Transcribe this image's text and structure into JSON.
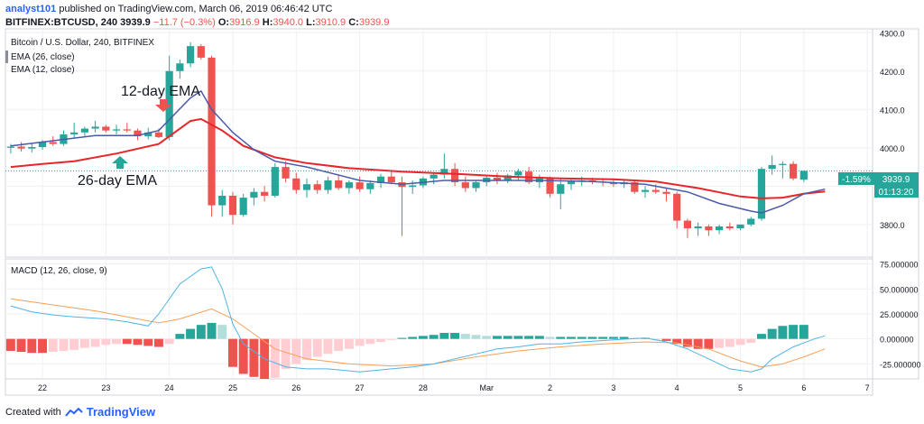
{
  "header": {
    "user": "analyst101",
    "published_text": "published on TradingView.com, March 06, 2019 06:46:42 UTC",
    "symbol": "BITFINEX:BTCUSD, 240",
    "last": "3939.9",
    "change": "−11.7 (−0.3%)",
    "o_label": "O:",
    "o": "3916.9",
    "h_label": "H:",
    "h": "3940.0",
    "l_label": "L:",
    "l": "3910.9",
    "c_label": "C:",
    "c": "3939.9"
  },
  "legend": {
    "title": "Bitcoin / U.S. Dollar, 240, BITFINEX",
    "ema26": "EMA (26, close)",
    "ema12": "EMA (12, close)",
    "macd": "MACD (12, 26, close, 9)"
  },
  "annotations": {
    "ema12_label": "12-day EMA",
    "ema26_label": "26-day EMA"
  },
  "price_tags": {
    "change_pct": "-1.59%",
    "price": "3939.9",
    "countdown": "01:13:20"
  },
  "footer": {
    "created_with": "Created with",
    "brand": "TradingView"
  },
  "colors": {
    "up": "#26a69a",
    "down": "#ef5350",
    "ema12": "#4a5aa8",
    "ema26": "#e8262a",
    "macd_line": "#4fb3e8",
    "signal_line": "#f5a05a",
    "hist_up_strong": "#26a69a",
    "hist_up_weak": "#b2dfdb",
    "hist_down_strong": "#ef5350",
    "hist_down_weak": "#ffcdd2"
  },
  "chart_data": [
    {
      "type": "candlestick",
      "title": "Bitcoin / U.S. Dollar, 240, BITFINEX",
      "x_ticks": [
        {
          "label": "22",
          "i": 3
        },
        {
          "label": "23",
          "i": 9
        },
        {
          "label": "24",
          "i": 15
        },
        {
          "label": "25",
          "i": 21
        },
        {
          "label": "26",
          "i": 27
        },
        {
          "label": "27",
          "i": 33
        },
        {
          "label": "28",
          "i": 39
        },
        {
          "label": "Mar",
          "i": 45
        },
        {
          "label": "2",
          "i": 51
        },
        {
          "label": "3",
          "i": 57
        },
        {
          "label": "4",
          "i": 63
        },
        {
          "label": "5",
          "i": 69
        },
        {
          "label": "6",
          "i": 75
        },
        {
          "label": "7",
          "i": 81
        }
      ],
      "y_ticks": [
        3800,
        3900,
        4000,
        4100,
        4200,
        4300
      ],
      "ylim": [
        3715,
        4310
      ],
      "grid": true,
      "ohlc": [
        [
          4000,
          4010,
          3985,
          4003
        ],
        [
          4003,
          4015,
          3990,
          3998
        ],
        [
          3998,
          4012,
          3988,
          4002
        ],
        [
          4002,
          4020,
          3995,
          4015
        ],
        [
          4015,
          4030,
          4005,
          4010
        ],
        [
          4010,
          4045,
          4005,
          4035
        ],
        [
          4035,
          4065,
          4025,
          4040
        ],
        [
          4040,
          4055,
          4030,
          4050
        ],
        [
          4050,
          4070,
          4040,
          4055
        ],
        [
          4055,
          4060,
          4040,
          4045
        ],
        [
          4045,
          4060,
          4035,
          4048
        ],
        [
          4048,
          4065,
          4040,
          4045
        ],
        [
          4045,
          4050,
          4020,
          4030
        ],
        [
          4030,
          4052,
          4022,
          4040
        ],
        [
          4040,
          4050,
          4025,
          4028
        ],
        [
          4028,
          4240,
          4020,
          4200
        ],
        [
          4200,
          4230,
          4180,
          4220
        ],
        [
          4220,
          4275,
          4210,
          4265
        ],
        [
          4265,
          4270,
          4230,
          4235
        ],
        [
          4235,
          4240,
          3820,
          3850
        ],
        [
          3850,
          3890,
          3820,
          3875
        ],
        [
          3875,
          3885,
          3800,
          3825
        ],
        [
          3825,
          3880,
          3820,
          3870
        ],
        [
          3870,
          3895,
          3850,
          3885
        ],
        [
          3885,
          3900,
          3860,
          3875
        ],
        [
          3875,
          3960,
          3870,
          3950
        ],
        [
          3950,
          3965,
          3910,
          3920
        ],
        [
          3920,
          3935,
          3880,
          3890
        ],
        [
          3890,
          3920,
          3870,
          3905
        ],
        [
          3905,
          3915,
          3880,
          3890
        ],
        [
          3890,
          3925,
          3880,
          3915
        ],
        [
          3915,
          3930,
          3890,
          3895
        ],
        [
          3895,
          3915,
          3880,
          3910
        ],
        [
          3910,
          3925,
          3885,
          3892
        ],
        [
          3892,
          3915,
          3880,
          3908
        ],
        [
          3908,
          3932,
          3895,
          3925
        ],
        [
          3925,
          3940,
          3905,
          3910
        ],
        [
          3910,
          3925,
          3770,
          3898
        ],
        [
          3898,
          3915,
          3880,
          3902
        ],
        [
          3902,
          3925,
          3895,
          3920
        ],
        [
          3920,
          3935,
          3905,
          3930
        ],
        [
          3930,
          3985,
          3920,
          3945
        ],
        [
          3945,
          3960,
          3900,
          3910
        ],
        [
          3910,
          3925,
          3885,
          3895
        ],
        [
          3895,
          3915,
          3885,
          3910
        ],
        [
          3910,
          3930,
          3900,
          3922
        ],
        [
          3922,
          3935,
          3905,
          3915
        ],
        [
          3915,
          3932,
          3908,
          3928
        ],
        [
          3928,
          3945,
          3915,
          3938
        ],
        [
          3938,
          3950,
          3905,
          3910
        ],
        [
          3910,
          3930,
          3895,
          3920
        ],
        [
          3920,
          3925,
          3870,
          3880
        ],
        [
          3880,
          3920,
          3840,
          3905
        ],
        [
          3905,
          3920,
          3890,
          3912
        ],
        [
          3912,
          3925,
          3900,
          3915
        ],
        [
          3915,
          3922,
          3905,
          3912
        ],
        [
          3912,
          3920,
          3900,
          3910
        ],
        [
          3910,
          3918,
          3898,
          3905
        ],
        [
          3905,
          3915,
          3895,
          3910
        ],
        [
          3910,
          3915,
          3880,
          3885
        ],
        [
          3885,
          3900,
          3870,
          3890
        ],
        [
          3890,
          3905,
          3880,
          3885
        ],
        [
          3885,
          3895,
          3860,
          3880
        ],
        [
          3880,
          3885,
          3790,
          3810
        ],
        [
          3810,
          3815,
          3765,
          3790
        ],
        [
          3790,
          3805,
          3770,
          3795
        ],
        [
          3795,
          3800,
          3770,
          3785
        ],
        [
          3785,
          3800,
          3775,
          3795
        ],
        [
          3795,
          3805,
          3785,
          3790
        ],
        [
          3790,
          3800,
          3785,
          3800
        ],
        [
          3800,
          3820,
          3795,
          3815
        ],
        [
          3815,
          3950,
          3810,
          3945
        ],
        [
          3945,
          3980,
          3930,
          3955
        ],
        [
          3955,
          3965,
          3920,
          3958
        ],
        [
          3958,
          3965,
          3915,
          3920
        ],
        [
          3916.9,
          3940,
          3910.9,
          3939.9
        ]
      ],
      "series": [
        {
          "name": "EMA (12, close)",
          "points": [
            [
              0,
              4005
            ],
            [
              8,
              4032
            ],
            [
              12,
              4032
            ],
            [
              14,
              4045
            ],
            [
              17,
              4130
            ],
            [
              18,
              4148
            ],
            [
              19,
              4100
            ],
            [
              21,
              4040
            ],
            [
              23,
              3995
            ],
            [
              25,
              3965
            ],
            [
              28,
              3950
            ],
            [
              33,
              3915
            ],
            [
              37,
              3905
            ],
            [
              41,
              3915
            ],
            [
              45,
              3915
            ],
            [
              50,
              3915
            ],
            [
              55,
              3912
            ],
            [
              60,
              3905
            ],
            [
              64,
              3885
            ],
            [
              67,
              3855
            ],
            [
              70,
              3835
            ],
            [
              71,
              3830
            ],
            [
              73,
              3850
            ],
            [
              75,
              3880
            ],
            [
              77,
              3892
            ]
          ]
        },
        {
          "name": "EMA (26, close)",
          "points": [
            [
              0,
              3950
            ],
            [
              3,
              3958
            ],
            [
              6,
              3965
            ],
            [
              10,
              3985
            ],
            [
              14,
              4010
            ],
            [
              16,
              4050
            ],
            [
              17,
              4070
            ],
            [
              18,
              4075
            ],
            [
              20,
              4045
            ],
            [
              22,
              4005
            ],
            [
              25,
              3975
            ],
            [
              28,
              3960
            ],
            [
              32,
              3947
            ],
            [
              37,
              3938
            ],
            [
              42,
              3932
            ],
            [
              47,
              3925
            ],
            [
              52,
              3920
            ],
            [
              57,
              3918
            ],
            [
              61,
              3912
            ],
            [
              65,
              3895
            ],
            [
              69,
              3873
            ],
            [
              71,
              3868
            ],
            [
              73,
              3870
            ],
            [
              75,
              3880
            ],
            [
              77,
              3886
            ]
          ]
        }
      ],
      "last_price": 3939.9
    },
    {
      "type": "macd",
      "title": "MACD (12, 26, close, 9)",
      "y_ticks": [
        -25,
        0,
        25,
        50,
        75
      ],
      "ylim": [
        -40,
        80
      ],
      "grid": true,
      "histogram": [
        -12,
        -13,
        -14,
        -14,
        -13,
        -12,
        -11,
        -9,
        -8,
        -6,
        -5,
        -5,
        -6,
        -7,
        -8,
        -5,
        5,
        10,
        14,
        16,
        14,
        -28,
        -35,
        -38,
        -40,
        -39,
        -30,
        -25,
        -21,
        -18,
        -15,
        -12,
        -10,
        -7,
        -5,
        -3,
        -1,
        1,
        2,
        3,
        4,
        6,
        6,
        5,
        4,
        3,
        3,
        3,
        3,
        3,
        3,
        2,
        2,
        2,
        2,
        2,
        2,
        2,
        2,
        1,
        1,
        0,
        -2,
        -5,
        -8,
        -10,
        -10,
        -9,
        -8,
        -6,
        -4,
        5,
        10,
        13,
        14,
        14
      ],
      "series": [
        {
          "name": "MACD",
          "points": [
            [
              0,
              33
            ],
            [
              2,
              27
            ],
            [
              4,
              24
            ],
            [
              6,
              22
            ],
            [
              9,
              20
            ],
            [
              11,
              17
            ],
            [
              13,
              13
            ],
            [
              14,
              25
            ],
            [
              16,
              55
            ],
            [
              18,
              70
            ],
            [
              19,
              72
            ],
            [
              20,
              50
            ],
            [
              21,
              15
            ],
            [
              22,
              -5
            ],
            [
              24,
              -20
            ],
            [
              26,
              -28
            ],
            [
              28,
              -30
            ],
            [
              30,
              -30
            ],
            [
              33,
              -33
            ],
            [
              36,
              -30
            ],
            [
              38,
              -28
            ],
            [
              40,
              -25
            ],
            [
              42,
              -20
            ],
            [
              44,
              -15
            ],
            [
              46,
              -10
            ],
            [
              48,
              -8
            ],
            [
              50,
              -5
            ],
            [
              52,
              -5
            ],
            [
              54,
              -3
            ],
            [
              57,
              -1
            ],
            [
              60,
              1
            ],
            [
              62,
              -3
            ],
            [
              64,
              -10
            ],
            [
              66,
              -20
            ],
            [
              68,
              -30
            ],
            [
              70,
              -33
            ],
            [
              71,
              -30
            ],
            [
              72,
              -20
            ],
            [
              74,
              -8
            ],
            [
              76,
              0
            ],
            [
              77,
              3
            ]
          ]
        },
        {
          "name": "Signal",
          "points": [
            [
              0,
              40
            ],
            [
              4,
              34
            ],
            [
              8,
              28
            ],
            [
              12,
              20
            ],
            [
              14,
              16
            ],
            [
              16,
              20
            ],
            [
              19,
              30
            ],
            [
              21,
              20
            ],
            [
              23,
              5
            ],
            [
              25,
              -10
            ],
            [
              28,
              -20
            ],
            [
              32,
              -25
            ],
            [
              36,
              -27
            ],
            [
              40,
              -25
            ],
            [
              44,
              -18
            ],
            [
              48,
              -12
            ],
            [
              52,
              -8
            ],
            [
              56,
              -5
            ],
            [
              60,
              -3
            ],
            [
              63,
              -4
            ],
            [
              66,
              -10
            ],
            [
              69,
              -22
            ],
            [
              71,
              -28
            ],
            [
              73,
              -25
            ],
            [
              75,
              -18
            ],
            [
              77,
              -10
            ]
          ]
        }
      ]
    }
  ]
}
